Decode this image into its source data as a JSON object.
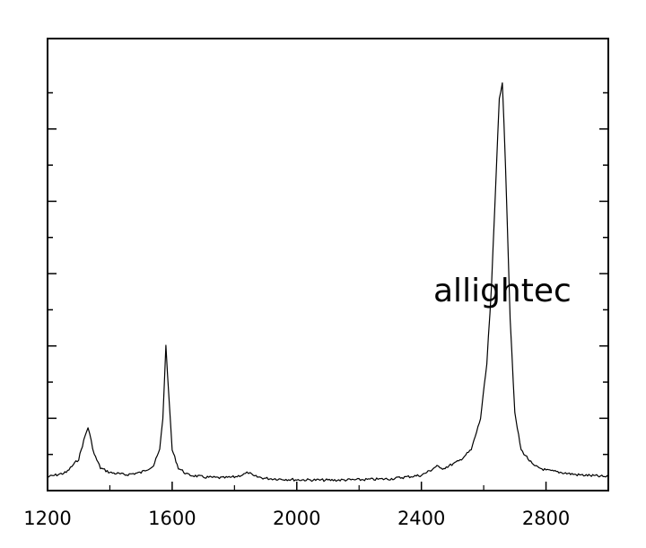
{
  "chart_data": {
    "type": "line",
    "title": "",
    "xlabel": "",
    "ylabel": "",
    "xlim": [
      1200,
      3000
    ],
    "ylim": [
      0,
      1.0
    ],
    "x_ticks": [
      1200,
      1600,
      2000,
      2400,
      2800
    ],
    "x_tick_labels": [
      "1200",
      "1600",
      "2000",
      "2400",
      "2800"
    ],
    "y_tick_labels_shown": false,
    "grid": false,
    "legend": "none",
    "annotation": "allightec",
    "series": [
      {
        "color": "#000000",
        "x": [
          1200,
          1260,
          1300,
          1320,
          1330,
          1340,
          1350,
          1370,
          1400,
          1450,
          1500,
          1540,
          1560,
          1570,
          1580,
          1590,
          1600,
          1620,
          1650,
          1700,
          1760,
          1800,
          1830,
          1845,
          1860,
          1900,
          2000,
          2100,
          2200,
          2300,
          2350,
          2400,
          2430,
          2450,
          2460,
          2480,
          2520,
          2560,
          2590,
          2610,
          2625,
          2640,
          2650,
          2660,
          2670,
          2685,
          2700,
          2720,
          2760,
          2800,
          2850,
          2900,
          2950,
          3000
        ],
        "y": [
          0.03,
          0.04,
          0.07,
          0.12,
          0.14,
          0.11,
          0.08,
          0.05,
          0.04,
          0.035,
          0.04,
          0.055,
          0.09,
          0.16,
          0.32,
          0.2,
          0.09,
          0.05,
          0.035,
          0.03,
          0.028,
          0.03,
          0.036,
          0.04,
          0.032,
          0.027,
          0.024,
          0.023,
          0.024,
          0.026,
          0.03,
          0.034,
          0.045,
          0.055,
          0.048,
          0.052,
          0.065,
          0.09,
          0.16,
          0.28,
          0.45,
          0.7,
          0.87,
          0.9,
          0.72,
          0.38,
          0.17,
          0.09,
          0.055,
          0.045,
          0.04,
          0.035,
          0.033,
          0.03
        ]
      }
    ]
  }
}
